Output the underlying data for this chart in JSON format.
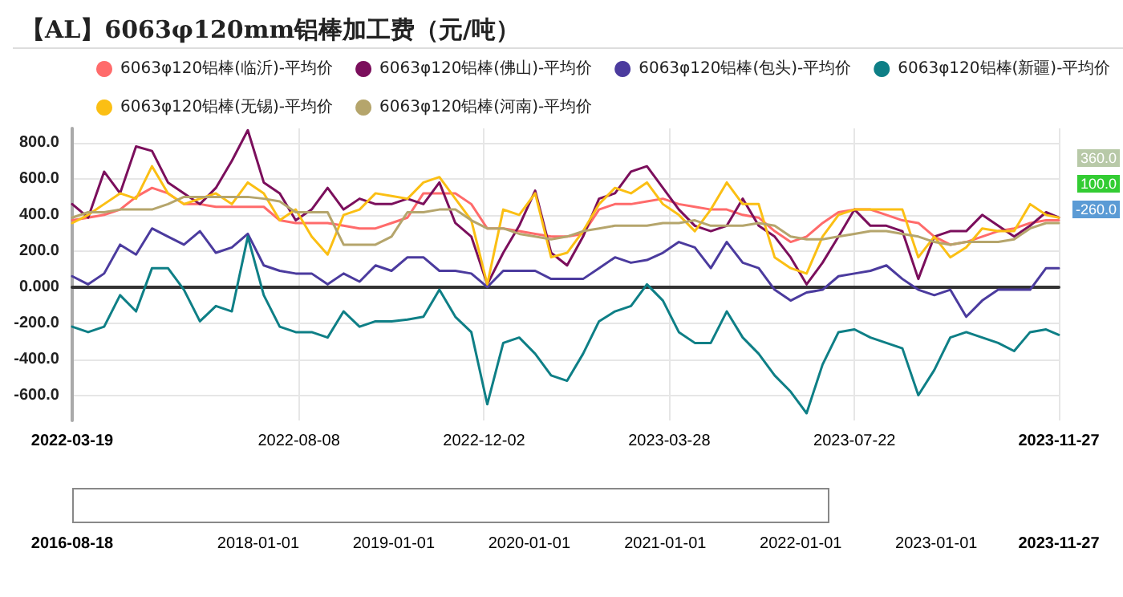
{
  "chart_data": {
    "type": "line",
    "title": "【AL】6063φ120mm铝棒加工费（元/吨）",
    "x": [
      "2022-03-19",
      "2022-03-29",
      "2022-04-08",
      "2022-04-18",
      "2022-04-28",
      "2022-05-08",
      "2022-05-18",
      "2022-05-28",
      "2022-06-07",
      "2022-06-17",
      "2022-06-27",
      "2022-07-07",
      "2022-07-17",
      "2022-07-27",
      "2022-08-06",
      "2022-08-16",
      "2022-08-26",
      "2022-09-05",
      "2022-09-15",
      "2022-09-25",
      "2022-10-05",
      "2022-10-15",
      "2022-10-25",
      "2022-11-04",
      "2022-11-14",
      "2022-11-24",
      "2022-12-04",
      "2022-12-14",
      "2022-12-24",
      "2023-01-03",
      "2023-01-13",
      "2023-01-23",
      "2023-02-02",
      "2023-02-12",
      "2023-02-22",
      "2023-03-04",
      "2023-03-14",
      "2023-03-24",
      "2023-04-03",
      "2023-04-13",
      "2023-04-23",
      "2023-05-03",
      "2023-05-13",
      "2023-05-23",
      "2023-06-02",
      "2023-06-12",
      "2023-06-22",
      "2023-07-02",
      "2023-07-12",
      "2023-07-22",
      "2023-08-01",
      "2023-08-11",
      "2023-08-21",
      "2023-08-31",
      "2023-09-10",
      "2023-09-20",
      "2023-09-30",
      "2023-10-10",
      "2023-10-20",
      "2023-10-30",
      "2023-11-09",
      "2023-11-19",
      "2023-11-27"
    ],
    "series": [
      {
        "name": "6063φ120铝棒(临沂)-平均价",
        "color": "#ff6b6b",
        "values": [
          370,
          385,
          400,
          430,
          500,
          550,
          520,
          460,
          460,
          445,
          445,
          445,
          445,
          370,
          355,
          355,
          355,
          340,
          325,
          325,
          355,
          385,
          520,
          520,
          520,
          460,
          325,
          325,
          310,
          295,
          280,
          280,
          295,
          430,
          460,
          460,
          475,
          490,
          460,
          445,
          430,
          430,
          400,
          385,
          310,
          250,
          280,
          355,
          415,
          430,
          430,
          400,
          370,
          355,
          280,
          235,
          250,
          280,
          310,
          325,
          355,
          370,
          370
        ]
      },
      {
        "name": "6063φ120铝棒(佛山)-平均价",
        "color": "#7b0f5c",
        "values": [
          460,
          385,
          640,
          520,
          780,
          755,
          580,
          520,
          460,
          550,
          700,
          870,
          580,
          520,
          370,
          430,
          550,
          430,
          490,
          460,
          460,
          490,
          460,
          580,
          355,
          280,
          15,
          190,
          340,
          535,
          190,
          120,
          280,
          490,
          520,
          640,
          670,
          550,
          430,
          340,
          310,
          340,
          490,
          340,
          280,
          165,
          15,
          135,
          280,
          430,
          340,
          340,
          310,
          45,
          280,
          310,
          310,
          400,
          340,
          280,
          340,
          415,
          385
        ]
      },
      {
        "name": "6063φ120铝棒(包头)-平均价",
        "color": "#4b3b9e",
        "values": [
          60,
          15,
          75,
          235,
          180,
          325,
          280,
          235,
          310,
          190,
          220,
          295,
          120,
          90,
          75,
          75,
          15,
          75,
          30,
          120,
          90,
          165,
          165,
          90,
          90,
          75,
          0,
          90,
          90,
          90,
          45,
          45,
          45,
          105,
          165,
          135,
          150,
          190,
          250,
          220,
          105,
          250,
          135,
          105,
          -15,
          -75,
          -30,
          -15,
          60,
          75,
          90,
          120,
          45,
          -15,
          -45,
          -15,
          -165,
          -75,
          -15,
          -15,
          -15,
          105,
          105
        ]
      },
      {
        "name": "6063φ120铝棒(新疆)-平均价",
        "color": "#0e7f86",
        "values": [
          -220,
          -250,
          -220,
          -45,
          -135,
          105,
          105,
          -15,
          -190,
          -105,
          -135,
          280,
          -45,
          -220,
          -250,
          -250,
          -280,
          -135,
          -220,
          -190,
          -190,
          -180,
          -165,
          -15,
          -165,
          -250,
          -650,
          -310,
          -280,
          -370,
          -490,
          -520,
          -370,
          -190,
          -135,
          -105,
          15,
          -75,
          -250,
          -310,
          -310,
          -135,
          -280,
          -370,
          -490,
          -580,
          -700,
          -430,
          -250,
          -235,
          -280,
          -310,
          -340,
          -600,
          -460,
          -280,
          -250,
          -280,
          -310,
          -355,
          -250,
          -235,
          -265
        ]
      },
      {
        "name": "6063φ120铝棒(无锡)-平均价",
        "color": "#fbbf14",
        "values": [
          355,
          400,
          460,
          520,
          490,
          670,
          520,
          460,
          490,
          520,
          460,
          580,
          520,
          370,
          430,
          280,
          180,
          400,
          430,
          520,
          505,
          490,
          580,
          610,
          490,
          370,
          15,
          430,
          400,
          520,
          165,
          190,
          310,
          460,
          550,
          520,
          580,
          460,
          400,
          310,
          430,
          580,
          460,
          460,
          165,
          105,
          75,
          280,
          400,
          430,
          430,
          430,
          430,
          165,
          280,
          165,
          220,
          325,
          310,
          310,
          460,
          400,
          385
        ]
      },
      {
        "name": "6063φ120铝棒(河南)-平均价",
        "color": "#b5a56c",
        "values": [
          385,
          415,
          415,
          430,
          430,
          430,
          460,
          500,
          500,
          500,
          500,
          500,
          490,
          475,
          415,
          415,
          415,
          235,
          235,
          235,
          280,
          415,
          415,
          430,
          430,
          370,
          325,
          325,
          295,
          280,
          265,
          280,
          310,
          325,
          340,
          340,
          340,
          355,
          355,
          370,
          340,
          340,
          340,
          355,
          340,
          280,
          265,
          265,
          280,
          295,
          310,
          310,
          295,
          280,
          250,
          235,
          250,
          250,
          250,
          265,
          325,
          355,
          355
        ]
      }
    ],
    "xlim": [
      "2022-03-19",
      "2023-11-27"
    ],
    "xticks": [
      {
        "value": "2022-03-19",
        "label": "2022-03-19"
      },
      {
        "value": "2022-08-08",
        "label": "2022-08-08"
      },
      {
        "value": "2022-12-02",
        "label": "2022-12-02"
      },
      {
        "value": "2023-03-28",
        "label": "2023-03-28"
      },
      {
        "value": "2023-07-22",
        "label": "2023-07-22"
      },
      {
        "value": "2023-11-27",
        "label": "2023-11-27"
      }
    ],
    "ylim": [
      -740,
      880
    ],
    "yticks": [
      {
        "value": -600,
        "label": "-600.0"
      },
      {
        "value": -400,
        "label": "-400.0"
      },
      {
        "value": -200,
        "label": "-200.0"
      },
      {
        "value": 0,
        "label": "0.000"
      },
      {
        "value": 200,
        "label": "200.0"
      },
      {
        "value": 400,
        "label": "400.0"
      },
      {
        "value": 600,
        "label": "600.0"
      },
      {
        "value": 800,
        "label": "800.0"
      }
    ],
    "x2lim": [
      "2016-08-18",
      "2023-11-27"
    ],
    "x2ticks": [
      {
        "value": "2016-08-18",
        "label": "2016-08-18"
      },
      {
        "value": "2018-01-01",
        "label": "2018-01-01"
      },
      {
        "value": "2019-01-01",
        "label": "2019-01-01"
      },
      {
        "value": "2020-01-01",
        "label": "2020-01-01"
      },
      {
        "value": "2021-01-01",
        "label": "2021-01-01"
      },
      {
        "value": "2022-01-01",
        "label": "2022-01-01"
      },
      {
        "value": "2023-01-01",
        "label": "2023-01-01"
      },
      {
        "value": "2023-11-27",
        "label": "2023-11-27"
      }
    ],
    "annotations": [
      "360.0",
      "100.0",
      "-260.0"
    ],
    "grid": true,
    "legend": "top"
  }
}
